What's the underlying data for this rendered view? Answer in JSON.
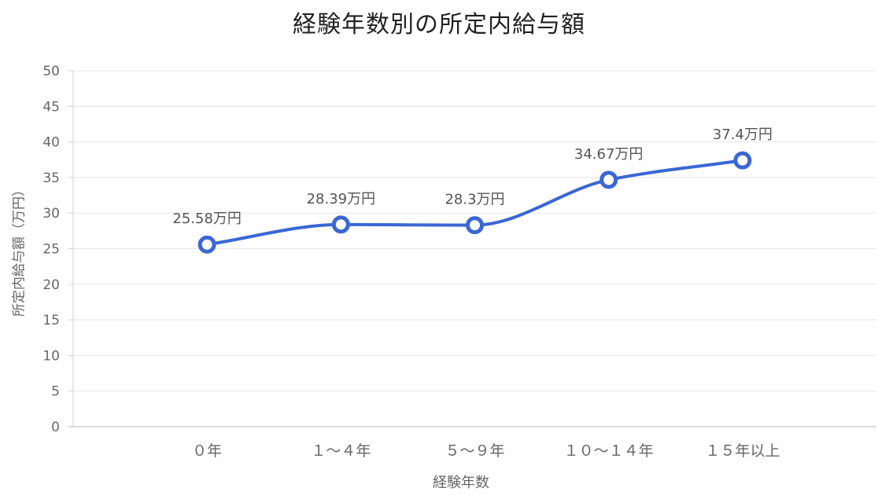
{
  "colors": {
    "line": "#3a67d4",
    "grid": "#e6e6e6",
    "axis": "#cfcfcf",
    "point_fill": "#ffffff"
  },
  "chart_data": {
    "type": "line",
    "title": "経験年数別の所定内給与額",
    "xlabel": "経験年数",
    "ylabel": "所定内給与額（万円）",
    "categories": [
      "０年",
      "１～４年",
      "５～９年",
      "１０～１４年",
      "１５年以上"
    ],
    "series": [
      {
        "values": [
          25.58,
          28.39,
          28.3,
          34.67,
          37.4
        ],
        "data_labels": [
          "25.58万円",
          "28.39万円",
          "28.3万円",
          "34.67万円",
          "37.4万円"
        ]
      }
    ],
    "ylim": [
      0,
      50
    ],
    "yticks": [
      0,
      5,
      10,
      15,
      20,
      25,
      30,
      35,
      40,
      45,
      50
    ],
    "grid": true,
    "smooth": true,
    "legend": "none"
  }
}
